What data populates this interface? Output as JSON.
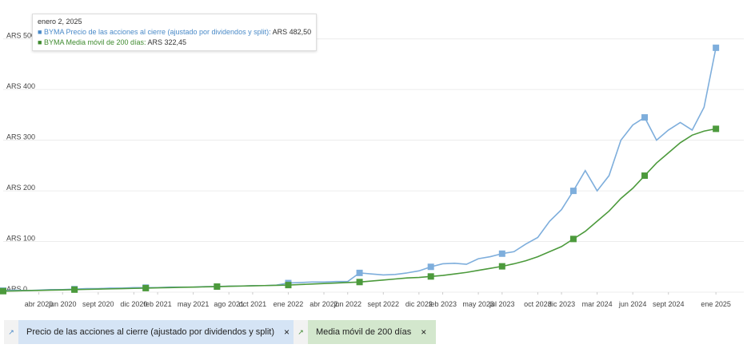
{
  "chart_data": {
    "type": "line",
    "x": [
      "2020-01",
      "2020-02",
      "2020-03",
      "2020-04",
      "2020-05",
      "2020-06",
      "2020-07",
      "2020-08",
      "2020-09",
      "2020-10",
      "2020-11",
      "2020-12",
      "2021-01",
      "2021-02",
      "2021-03",
      "2021-04",
      "2021-05",
      "2021-06",
      "2021-07",
      "2021-08",
      "2021-09",
      "2021-10",
      "2021-11",
      "2021-12",
      "2022-01",
      "2022-02",
      "2022-03",
      "2022-04",
      "2022-05",
      "2022-06",
      "2022-07",
      "2022-08",
      "2022-09",
      "2022-10",
      "2022-11",
      "2022-12",
      "2023-01",
      "2023-02",
      "2023-03",
      "2023-04",
      "2023-05",
      "2023-06",
      "2023-07",
      "2023-08",
      "2023-09",
      "2023-10",
      "2023-11",
      "2023-12",
      "2024-01",
      "2024-02",
      "2024-03",
      "2024-04",
      "2024-05",
      "2024-06",
      "2024-07",
      "2024-08",
      "2024-09",
      "2024-10",
      "2024-11",
      "2024-12",
      "2025-01"
    ],
    "series": [
      {
        "name": "Precio de las acciones al cierre (ajustado por dividendos y split)",
        "color": "#7eaedc",
        "values": [
          3,
          4,
          3,
          4,
          5,
          5,
          6,
          7,
          7,
          8,
          8,
          9,
          9,
          9,
          10,
          10,
          10,
          11,
          11,
          12,
          12,
          13,
          13,
          14,
          18,
          19,
          20,
          20,
          21,
          21,
          38,
          36,
          34,
          35,
          38,
          42,
          50,
          56,
          57,
          55,
          66,
          70,
          76,
          80,
          95,
          108,
          140,
          163,
          200,
          240,
          200,
          230,
          300,
          330,
          345,
          300,
          320,
          335,
          320,
          365,
          482.5
        ]
      },
      {
        "name": "Media móvil de 200 días",
        "color": "#4c9a3c",
        "values": [
          2,
          2.5,
          3,
          3.5,
          4,
          4.5,
          5,
          5.5,
          6,
          6.5,
          7,
          7.5,
          8,
          8.5,
          9,
          9.5,
          10,
          10.5,
          11,
          11.5,
          12,
          12.5,
          13,
          13.5,
          14,
          15,
          16,
          17,
          18,
          19,
          20,
          22,
          24,
          26,
          28,
          29,
          31,
          33,
          36,
          39,
          43,
          47,
          51,
          56,
          62,
          70,
          80,
          90,
          105,
          120,
          140,
          160,
          185,
          205,
          230,
          255,
          275,
          295,
          310,
          318,
          322.45
        ]
      }
    ],
    "xlim": [
      "2020-01",
      "2025-02"
    ],
    "xticks": [
      {
        "value": "2020-04",
        "label": "abr 2020"
      },
      {
        "value": "2020-06",
        "label": "jun 2020"
      },
      {
        "value": "2020-09",
        "label": "sept 2020"
      },
      {
        "value": "2020-12",
        "label": "dic 2020"
      },
      {
        "value": "2021-02",
        "label": "feb 2021"
      },
      {
        "value": "2021-05",
        "label": "may 2021"
      },
      {
        "value": "2021-08",
        "label": "ago 2021"
      },
      {
        "value": "2021-10",
        "label": "oct 2021"
      },
      {
        "value": "2022-01",
        "label": "ene 2022"
      },
      {
        "value": "2022-04",
        "label": "abr 2022"
      },
      {
        "value": "2022-06",
        "label": "jun 2022"
      },
      {
        "value": "2022-09",
        "label": "sept 2022"
      },
      {
        "value": "2022-12",
        "label": "dic 2022"
      },
      {
        "value": "2023-02",
        "label": "feb 2023"
      },
      {
        "value": "2023-05",
        "label": "may 2023"
      },
      {
        "value": "2023-07",
        "label": "jul 2023"
      },
      {
        "value": "2023-10",
        "label": "oct 2023"
      },
      {
        "value": "2023-12",
        "label": "dic 2023"
      },
      {
        "value": "2024-03",
        "label": "mar 2024"
      },
      {
        "value": "2024-06",
        "label": "jun 2024"
      },
      {
        "value": "2024-09",
        "label": "sept 2024"
      },
      {
        "value": "2025-01",
        "label": "ene 2025"
      }
    ],
    "ylim": [
      0,
      550
    ],
    "yticks": [
      {
        "value": 0,
        "label": "ARS 0"
      },
      {
        "value": 100,
        "label": "ARS 100"
      },
      {
        "value": 200,
        "label": "ARS 200"
      },
      {
        "value": 300,
        "label": "ARS 300"
      },
      {
        "value": 400,
        "label": "ARS 400"
      },
      {
        "value": 500,
        "label": "ARS 500"
      }
    ],
    "grid": true,
    "tooltip": {
      "date": "enero 2, 2025",
      "items": [
        {
          "text": "BYMA Precio de las acciones al cierre (ajustado por dividendos y split):",
          "value": 482.5,
          "label": "ARS 482,50"
        },
        {
          "text": "BYMA Media móvil de 200 días:",
          "value": 322.45,
          "label": "ARS 322,45"
        }
      ]
    }
  }
}
